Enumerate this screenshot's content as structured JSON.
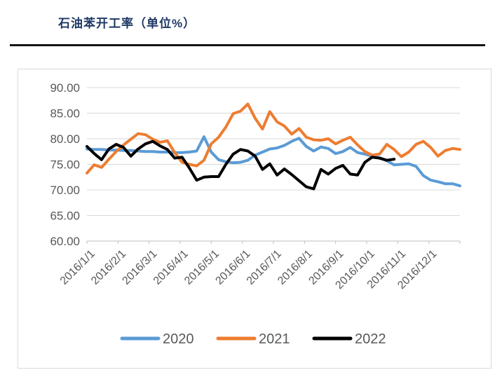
{
  "header": {
    "title": "石油苯开工率（单位%）"
  },
  "colors": {
    "title": "#1F3864",
    "rule": "#151515",
    "axis_text": "#595959",
    "gridline": "#D9D9D9",
    "axis_line": "#BFBFBF",
    "chart_border": "#D9D9D9",
    "series_2020": "#5B9BD5",
    "series_2021": "#ED7D31",
    "series_2022": "#000000"
  },
  "chart_data": {
    "type": "line",
    "title": "石油苯开工率（单位%）",
    "ylabel": "",
    "xlabel": "",
    "ylim": [
      60,
      90
    ],
    "grid": "horizontal",
    "legend_position": "bottom",
    "x_is_weekly_dates_starting": "2016/1/1",
    "x_points_total": 52,
    "y_ticks": [
      {
        "value": 90,
        "label": "90.00"
      },
      {
        "value": 85,
        "label": "85.00"
      },
      {
        "value": 80,
        "label": "80.00"
      },
      {
        "value": 75,
        "label": "75.00"
      },
      {
        "value": 70,
        "label": "70.00"
      },
      {
        "value": 65,
        "label": "65.00"
      },
      {
        "value": 60,
        "label": "60.00"
      }
    ],
    "x_tick_labels": [
      "2016/1/1",
      "2016/2/1",
      "2016/3/1",
      "2016/4/1",
      "2016/5/1",
      "2016/6/1",
      "2016/7/1",
      "2016/8/1",
      "2016/9/1",
      "2016/10/1",
      "2016/11/1",
      "2016/12/1"
    ],
    "series": [
      {
        "name": "2020",
        "color": "#5B9BD5",
        "values": [
          78.0,
          77.9,
          77.9,
          77.8,
          77.8,
          77.7,
          77.7,
          77.6,
          77.5,
          77.5,
          77.4,
          77.4,
          77.3,
          77.3,
          77.4,
          77.6,
          80.4,
          77.4,
          75.9,
          75.5,
          75.3,
          75.4,
          75.8,
          76.8,
          77.4,
          78.0,
          78.2,
          78.7,
          79.5,
          80.1,
          78.5,
          77.6,
          78.4,
          78.1,
          77.1,
          77.5,
          78.3,
          77.3,
          77.0,
          76.6,
          76.3,
          75.7,
          74.9,
          75.0,
          75.1,
          74.6,
          72.8,
          71.9,
          71.6,
          71.2,
          71.2,
          70.8
        ]
      },
      {
        "name": "2021",
        "color": "#ED7D31",
        "values": [
          73.3,
          74.9,
          74.4,
          76.0,
          77.5,
          78.8,
          79.9,
          81.0,
          80.8,
          79.9,
          79.3,
          79.6,
          77.3,
          75.4,
          75.0,
          74.7,
          75.8,
          79.0,
          80.3,
          82.3,
          84.9,
          85.4,
          86.8,
          84.0,
          81.9,
          85.3,
          83.3,
          82.5,
          80.9,
          82.0,
          80.3,
          79.8,
          79.7,
          80.0,
          79.0,
          79.7,
          80.3,
          78.8,
          77.5,
          76.8,
          77.0,
          78.9,
          77.9,
          76.5,
          77.4,
          78.9,
          79.5,
          78.3,
          76.6,
          77.7,
          78.1,
          77.9
        ]
      },
      {
        "name": "2022",
        "color": "#000000",
        "values": [
          78.5,
          77.1,
          75.9,
          78.0,
          78.9,
          78.3,
          76.6,
          78.0,
          79.0,
          79.5,
          78.6,
          77.9,
          76.2,
          76.4,
          74.3,
          71.9,
          72.5,
          72.6,
          72.6,
          75.0,
          77.0,
          77.9,
          77.6,
          76.6,
          74.0,
          75.1,
          72.9,
          74.1,
          73.0,
          71.8,
          70.6,
          70.2,
          74.0,
          73.1,
          74.2,
          74.8,
          73.1,
          72.9,
          75.4,
          76.4,
          76.2,
          75.8,
          76.0
        ]
      }
    ],
    "legend": [
      "2020",
      "2021",
      "2022"
    ]
  }
}
